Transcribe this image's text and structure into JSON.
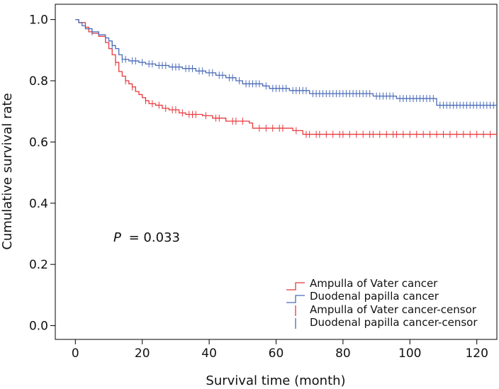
{
  "chart_data": {
    "type": "line",
    "title": "",
    "xlabel": "Survival time (month)",
    "ylabel": "Cumulative survival rate",
    "xlim": [
      -6,
      126
    ],
    "ylim": [
      -0.045,
      1.05
    ],
    "xticks": [
      0,
      20,
      40,
      60,
      80,
      100,
      120
    ],
    "yticks": [
      0.0,
      0.2,
      0.4,
      0.6,
      0.8,
      1.0
    ],
    "xtick_labels": [
      "0",
      "20",
      "40",
      "60",
      "80",
      "100",
      "120"
    ],
    "ytick_labels": [
      "0.0",
      "0.2",
      "0.4",
      "0.6",
      "0.8",
      "1.0"
    ],
    "annotation": {
      "p_symbol": "P",
      "p_text": "= 0.033"
    },
    "legend_position": "bottom-right",
    "series": [
      {
        "name": "Ampulla of Vater cancer",
        "censor_name": "Ampulla of Vater cancer-censor",
        "color": "#e8383d",
        "steps": [
          [
            0,
            1.0
          ],
          [
            1,
            0.99
          ],
          [
            3,
            0.975
          ],
          [
            4,
            0.96
          ],
          [
            5,
            0.955
          ],
          [
            7,
            0.945
          ],
          [
            9,
            0.925
          ],
          [
            10,
            0.905
          ],
          [
            11,
            0.885
          ],
          [
            12,
            0.86
          ],
          [
            13,
            0.83
          ],
          [
            14,
            0.815
          ],
          [
            15,
            0.8
          ],
          [
            16,
            0.79
          ],
          [
            17,
            0.78
          ],
          [
            18,
            0.765
          ],
          [
            19,
            0.755
          ],
          [
            20,
            0.745
          ],
          [
            21,
            0.735
          ],
          [
            22,
            0.725
          ],
          [
            24,
            0.72
          ],
          [
            26,
            0.71
          ],
          [
            28,
            0.705
          ],
          [
            31,
            0.695
          ],
          [
            33,
            0.69
          ],
          [
            38,
            0.686
          ],
          [
            41,
            0.678
          ],
          [
            45,
            0.668
          ],
          [
            52,
            0.662
          ],
          [
            53,
            0.645
          ],
          [
            65,
            0.637
          ],
          [
            68,
            0.625
          ],
          [
            126,
            0.625
          ]
        ],
        "censors": [
          [
            12,
            0.86
          ],
          [
            15,
            0.8
          ],
          [
            17,
            0.78
          ],
          [
            21,
            0.735
          ],
          [
            23,
            0.725
          ],
          [
            25,
            0.72
          ],
          [
            27,
            0.71
          ],
          [
            29,
            0.705
          ],
          [
            30,
            0.705
          ],
          [
            32,
            0.695
          ],
          [
            34,
            0.69
          ],
          [
            35,
            0.69
          ],
          [
            36,
            0.69
          ],
          [
            39,
            0.686
          ],
          [
            42,
            0.678
          ],
          [
            43,
            0.678
          ],
          [
            47,
            0.668
          ],
          [
            48,
            0.668
          ],
          [
            50,
            0.668
          ],
          [
            55,
            0.645
          ],
          [
            57,
            0.645
          ],
          [
            59,
            0.645
          ],
          [
            61,
            0.645
          ],
          [
            62,
            0.645
          ],
          [
            66,
            0.637
          ],
          [
            69,
            0.625
          ],
          [
            70,
            0.625
          ],
          [
            72,
            0.625
          ],
          [
            73,
            0.625
          ],
          [
            75,
            0.625
          ],
          [
            77,
            0.625
          ],
          [
            79,
            0.625
          ],
          [
            80,
            0.625
          ],
          [
            82,
            0.625
          ],
          [
            84,
            0.625
          ],
          [
            86,
            0.625
          ],
          [
            88,
            0.625
          ],
          [
            89,
            0.625
          ],
          [
            91,
            0.625
          ],
          [
            93,
            0.625
          ],
          [
            95,
            0.625
          ],
          [
            96,
            0.625
          ],
          [
            98,
            0.625
          ],
          [
            100,
            0.625
          ],
          [
            102,
            0.625
          ],
          [
            104,
            0.625
          ],
          [
            106,
            0.625
          ],
          [
            108,
            0.625
          ],
          [
            110,
            0.625
          ],
          [
            112,
            0.625
          ],
          [
            114,
            0.625
          ],
          [
            116,
            0.625
          ],
          [
            118,
            0.625
          ],
          [
            120,
            0.625
          ],
          [
            122,
            0.625
          ],
          [
            124,
            0.625
          ]
        ]
      },
      {
        "name": "Duodenal papilla cancer",
        "censor_name": "Duodenal papilla cancer-censor",
        "color": "#4a6bb8",
        "steps": [
          [
            0,
            1.0
          ],
          [
            1,
            0.99
          ],
          [
            2,
            0.98
          ],
          [
            3,
            0.97
          ],
          [
            5,
            0.96
          ],
          [
            7,
            0.95
          ],
          [
            9,
            0.94
          ],
          [
            10,
            0.93
          ],
          [
            11,
            0.915
          ],
          [
            12,
            0.905
          ],
          [
            13,
            0.885
          ],
          [
            14,
            0.87
          ],
          [
            16,
            0.865
          ],
          [
            19,
            0.86
          ],
          [
            21,
            0.855
          ],
          [
            24,
            0.85
          ],
          [
            28,
            0.845
          ],
          [
            32,
            0.84
          ],
          [
            36,
            0.832
          ],
          [
            39,
            0.826
          ],
          [
            42,
            0.818
          ],
          [
            45,
            0.81
          ],
          [
            48,
            0.8
          ],
          [
            50,
            0.79
          ],
          [
            56,
            0.783
          ],
          [
            58,
            0.775
          ],
          [
            64,
            0.768
          ],
          [
            70,
            0.758
          ],
          [
            89,
            0.75
          ],
          [
            96,
            0.742
          ],
          [
            108,
            0.72
          ],
          [
            126,
            0.72
          ]
        ],
        "censors": [
          [
            5,
            0.96
          ],
          [
            11,
            0.915
          ],
          [
            14,
            0.87
          ],
          [
            15,
            0.87
          ],
          [
            17,
            0.865
          ],
          [
            18,
            0.865
          ],
          [
            20,
            0.86
          ],
          [
            22,
            0.855
          ],
          [
            23,
            0.855
          ],
          [
            25,
            0.85
          ],
          [
            26,
            0.85
          ],
          [
            27,
            0.85
          ],
          [
            29,
            0.845
          ],
          [
            30,
            0.845
          ],
          [
            31,
            0.845
          ],
          [
            33,
            0.84
          ],
          [
            34,
            0.84
          ],
          [
            35,
            0.84
          ],
          [
            37,
            0.832
          ],
          [
            38,
            0.832
          ],
          [
            40,
            0.826
          ],
          [
            41,
            0.826
          ],
          [
            43,
            0.818
          ],
          [
            44,
            0.818
          ],
          [
            46,
            0.81
          ],
          [
            47,
            0.81
          ],
          [
            49,
            0.8
          ],
          [
            51,
            0.79
          ],
          [
            52,
            0.79
          ],
          [
            53,
            0.79
          ],
          [
            54,
            0.79
          ],
          [
            55,
            0.79
          ],
          [
            57,
            0.783
          ],
          [
            59,
            0.775
          ],
          [
            60,
            0.775
          ],
          [
            61,
            0.775
          ],
          [
            62,
            0.775
          ],
          [
            63,
            0.775
          ],
          [
            65,
            0.768
          ],
          [
            66,
            0.768
          ],
          [
            67,
            0.768
          ],
          [
            68,
            0.768
          ],
          [
            69,
            0.768
          ],
          [
            71,
            0.758
          ],
          [
            72,
            0.758
          ],
          [
            73,
            0.758
          ],
          [
            74,
            0.758
          ],
          [
            75,
            0.758
          ],
          [
            76,
            0.758
          ],
          [
            77,
            0.758
          ],
          [
            78,
            0.758
          ],
          [
            79,
            0.758
          ],
          [
            80,
            0.758
          ],
          [
            81,
            0.758
          ],
          [
            82,
            0.758
          ],
          [
            83,
            0.758
          ],
          [
            84,
            0.758
          ],
          [
            85,
            0.758
          ],
          [
            86,
            0.758
          ],
          [
            87,
            0.758
          ],
          [
            88,
            0.758
          ],
          [
            90,
            0.75
          ],
          [
            91,
            0.75
          ],
          [
            92,
            0.75
          ],
          [
            93,
            0.75
          ],
          [
            94,
            0.75
          ],
          [
            95,
            0.75
          ],
          [
            97,
            0.742
          ],
          [
            98,
            0.742
          ],
          [
            99,
            0.742
          ],
          [
            100,
            0.742
          ],
          [
            101,
            0.742
          ],
          [
            102,
            0.742
          ],
          [
            103,
            0.742
          ],
          [
            104,
            0.742
          ],
          [
            105,
            0.742
          ],
          [
            106,
            0.742
          ],
          [
            107,
            0.742
          ],
          [
            109,
            0.72
          ],
          [
            110,
            0.72
          ],
          [
            111,
            0.72
          ],
          [
            112,
            0.72
          ],
          [
            113,
            0.72
          ],
          [
            114,
            0.72
          ],
          [
            115,
            0.72
          ],
          [
            116,
            0.72
          ],
          [
            117,
            0.72
          ],
          [
            118,
            0.72
          ],
          [
            119,
            0.72
          ],
          [
            120,
            0.72
          ],
          [
            121,
            0.72
          ],
          [
            122,
            0.72
          ],
          [
            123,
            0.72
          ],
          [
            124,
            0.72
          ],
          [
            125,
            0.72
          ]
        ]
      }
    ]
  }
}
